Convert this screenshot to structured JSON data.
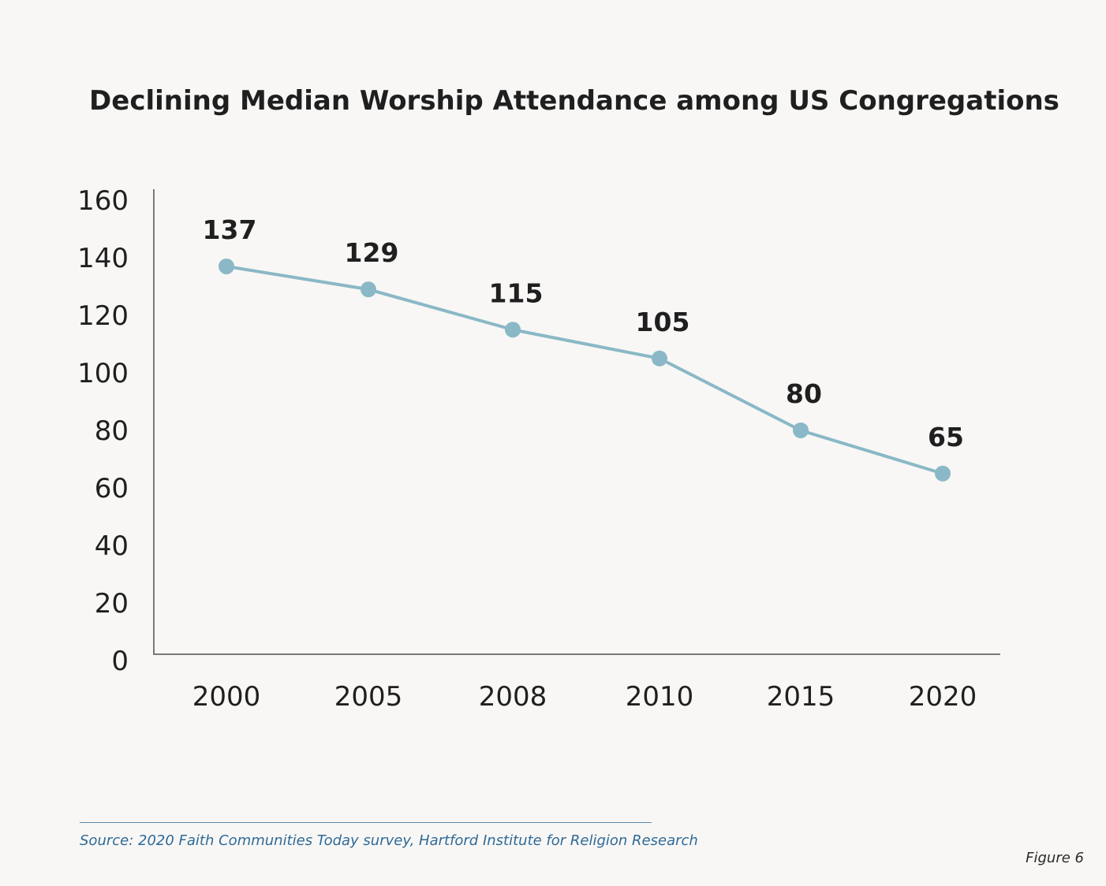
{
  "chart_data": {
    "type": "line",
    "title": "Declining Median Worship Attendance among US Congregations",
    "categories": [
      "2000",
      "2005",
      "2008",
      "2010",
      "2015",
      "2020"
    ],
    "values": [
      137,
      129,
      115,
      105,
      80,
      65
    ],
    "data_labels": [
      "137",
      "129",
      "115",
      "105",
      "80",
      "65"
    ],
    "y_ticks": [
      "0",
      "20",
      "40",
      "60",
      "80",
      "100",
      "120",
      "140",
      "160"
    ],
    "ylim": [
      0,
      160
    ],
    "xlabel": "",
    "ylabel": "",
    "grid": false,
    "legend": "none",
    "line_color": "#8ab8c6",
    "marker_color": "#8ab8c6",
    "axis_color": "#7a7a7a"
  },
  "footer": {
    "source": "Source: 2020 Faith Communities Today survey, Hartford Institute for Religion Research",
    "figure": "Figure 6"
  }
}
